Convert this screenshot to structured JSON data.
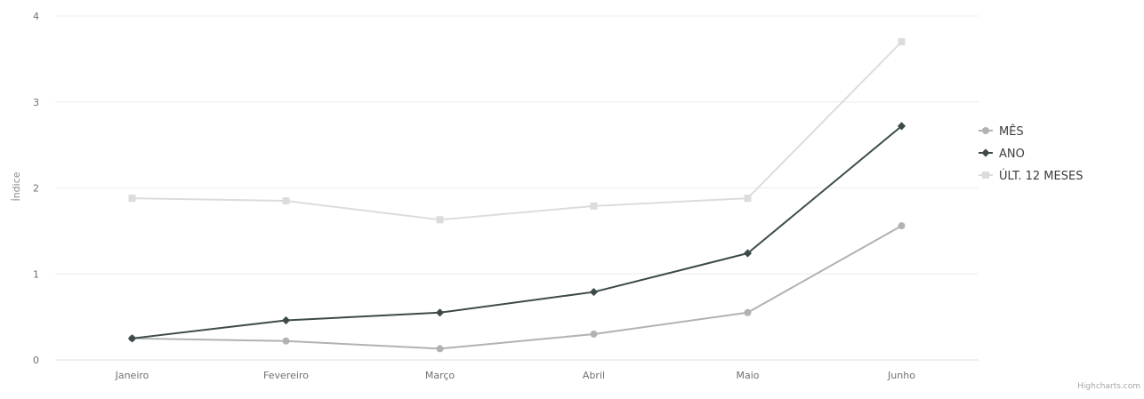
{
  "chart_data": {
    "type": "line",
    "title": "",
    "xlabel": "",
    "ylabel": "Índice",
    "categories": [
      "Janeiro",
      "Fevereiro",
      "Março",
      "Abril",
      "Maio",
      "Junho"
    ],
    "ylim": [
      0,
      4
    ],
    "yticks": [
      "0",
      "1",
      "2",
      "3",
      "4"
    ],
    "grid": true,
    "legend_position": "right",
    "series": [
      {
        "name": "MÊS",
        "values": [
          0.25,
          0.22,
          0.13,
          0.3,
          0.55,
          1.56
        ],
        "color": "#b2b2b2",
        "marker": "circle"
      },
      {
        "name": "ANO",
        "values": [
          0.25,
          0.46,
          0.55,
          0.79,
          1.24,
          2.72
        ],
        "color": "#3d4a4a",
        "marker": "diamond"
      },
      {
        "name": "ÚLT. 12 MESES",
        "values": [
          1.88,
          1.85,
          1.63,
          1.79,
          1.88,
          3.7
        ],
        "color": "#dcdcdc",
        "marker": "square"
      }
    ]
  },
  "credit": "Highcharts.com"
}
